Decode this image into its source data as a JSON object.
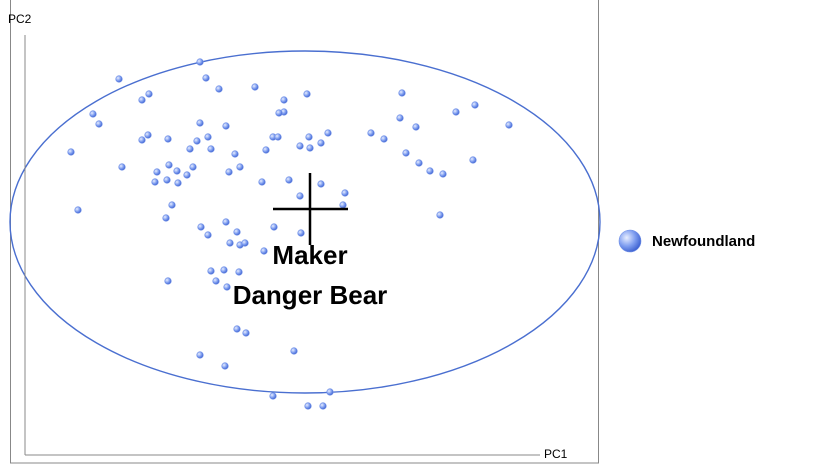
{
  "chart_data": {
    "type": "scatter",
    "x_label": "PC1",
    "y_label": "PC2",
    "annotations": [
      "Maker",
      "Danger Bear"
    ],
    "xlim": [
      0,
      515
    ],
    "ylim": [
      0,
      420
    ],
    "series": [
      {
        "name": "Newfoundland",
        "color": "#6f8fe6",
        "x": [
          175,
          94,
          181,
          194,
          230,
          124,
          117,
          282,
          259,
          377,
          450,
          431,
          68,
          74,
          259,
          254,
          201,
          175,
          375,
          391,
          484,
          123,
          117,
          143,
          172,
          183,
          165,
          186,
          248,
          253,
          284,
          303,
          346,
          359,
          275,
          285,
          241,
          296,
          46,
          210,
          381,
          448,
          97,
          144,
          152,
          168,
          132,
          130,
          142,
          162,
          153,
          204,
          215,
          394,
          405,
          418,
          237,
          264,
          296,
          320,
          275,
          318,
          147,
          53,
          141,
          415,
          201,
          176,
          183,
          212,
          249,
          276,
          205,
          215,
          220,
          239,
          186,
          199,
          214,
          143,
          191,
          202,
          212,
          221,
          175,
          269,
          200,
          248,
          305,
          283,
          298
        ],
        "values": [
          393,
          376,
          377,
          366,
          368,
          361,
          355,
          361,
          355,
          362,
          350,
          343,
          341,
          331,
          343,
          342,
          329,
          332,
          337,
          328,
          330,
          320,
          315,
          316,
          314,
          318,
          306,
          306,
          318,
          318,
          318,
          322,
          322,
          316,
          309,
          307,
          305,
          312,
          303,
          301,
          302,
          295,
          288,
          290,
          284,
          288,
          283,
          273,
          275,
          280,
          272,
          283,
          288,
          292,
          284,
          281,
          273,
          275,
          271,
          262,
          259,
          250,
          250,
          245,
          237,
          240,
          233,
          228,
          220,
          223,
          228,
          222,
          212,
          210,
          212,
          204,
          184,
          185,
          183,
          174,
          174,
          168,
          126,
          122,
          100,
          104,
          89,
          59,
          63,
          49,
          49
        ]
      }
    ]
  }
}
